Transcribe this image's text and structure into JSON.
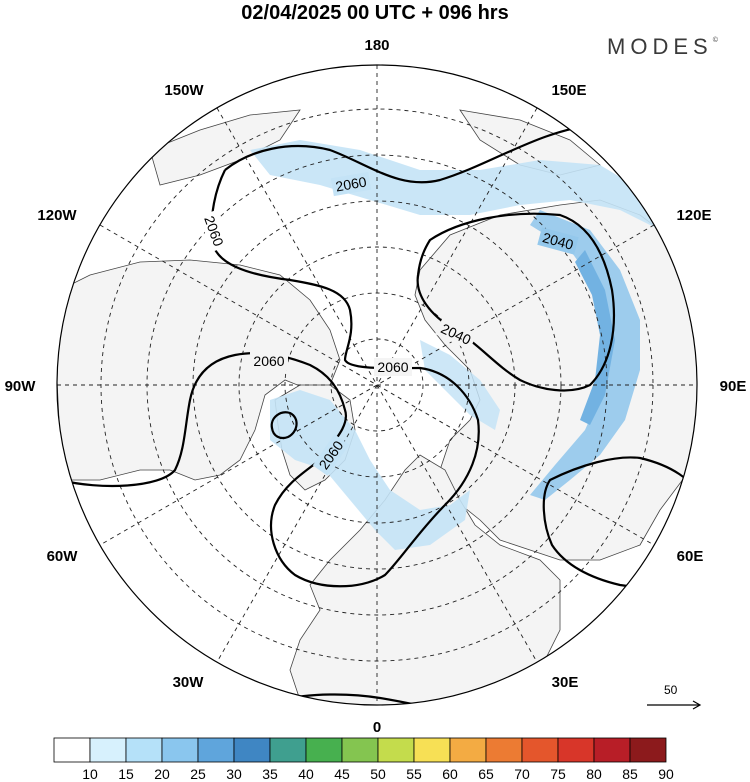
{
  "title": "02/04/2025  00 UTC  + 096 hrs",
  "brand": {
    "name": "MODES",
    "mark": "©"
  },
  "longitude_labels": {
    "n180": "180",
    "w150": "150W",
    "e150": "150E",
    "w120": "120W",
    "e120": "120E",
    "w90": "90W",
    "e90": "90E",
    "w60": "60W",
    "e60": "60E",
    "w30": "30W",
    "e30": "30E",
    "s0": "0"
  },
  "contour_labels": [
    "2060",
    "2060",
    "2040",
    "2040",
    "2060",
    "2060",
    "2060"
  ],
  "reference_vector": {
    "label": "50"
  },
  "colorbar": {
    "labels": [
      "10",
      "15",
      "20",
      "25",
      "30",
      "35",
      "40",
      "45",
      "50",
      "55",
      "60",
      "65",
      "70",
      "75",
      "80",
      "85",
      "90"
    ],
    "colors": [
      "#ffffff",
      "#d7f1fd",
      "#b5e1f9",
      "#8ac6ee",
      "#5fa5dc",
      "#3f86c3",
      "#3f9f8f",
      "#47b04f",
      "#84c550",
      "#c4dc4c",
      "#f7e055",
      "#f3ab43",
      "#ec7b33",
      "#e4562c",
      "#d83629",
      "#b81e27",
      "#8c1a1c"
    ]
  },
  "colors": {
    "land": "#f4f4f4",
    "jet_light": "#c4e3f6",
    "jet_mid": "#94c8ec",
    "jet_core": "#72b2e2"
  }
}
